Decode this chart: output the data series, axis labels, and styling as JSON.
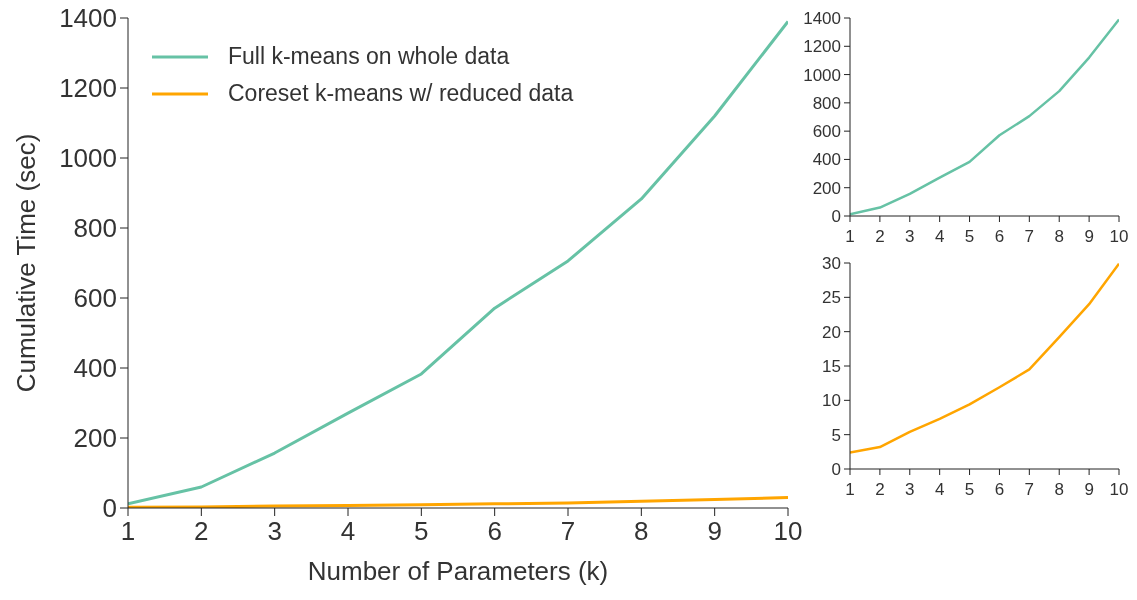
{
  "chart_data": [
    {
      "type": "line",
      "xlabel": "Number of Parameters (k)",
      "ylabel": "Cumulative Time (sec)",
      "x": [
        1,
        2,
        3,
        4,
        5,
        6,
        7,
        8,
        9,
        10
      ],
      "xlim": [
        1,
        10
      ],
      "xticks": [
        1,
        2,
        3,
        4,
        5,
        6,
        7,
        8,
        9,
        10
      ],
      "ylim": [
        0,
        1400
      ],
      "yticks": [
        0,
        200,
        400,
        600,
        800,
        1000,
        1200,
        1400
      ],
      "grid": false,
      "legend": "top left",
      "marker": "none",
      "line_style": "solid",
      "series": [
        {
          "name": "Full k-means on whole data",
          "color": "#66c2a5",
          "values": [
            12,
            60,
            157,
            271,
            383,
            571,
            706,
            883,
            1120,
            1390
          ]
        },
        {
          "name": "Coreset k-means w/ reduced data",
          "color": "#ffa500",
          "values": [
            2.4,
            3.2,
            5.4,
            7.3,
            9.4,
            11.9,
            14.5,
            19.2,
            24,
            29.9
          ]
        }
      ]
    },
    {
      "type": "line",
      "x": [
        1,
        2,
        3,
        4,
        5,
        6,
        7,
        8,
        9,
        10
      ],
      "xlim": [
        1,
        10
      ],
      "xticks": [
        1,
        2,
        3,
        4,
        5,
        6,
        7,
        8,
        9,
        10
      ],
      "ylim": [
        0,
        1400
      ],
      "yticks": [
        0,
        200,
        400,
        600,
        800,
        1000,
        1200,
        1400
      ],
      "grid": false,
      "marker": "none",
      "line_style": "solid",
      "series": [
        {
          "color": "#66c2a5",
          "values": [
            12,
            60,
            157,
            271,
            383,
            571,
            706,
            883,
            1120,
            1390
          ]
        }
      ]
    },
    {
      "type": "line",
      "x": [
        1,
        2,
        3,
        4,
        5,
        6,
        7,
        8,
        9,
        10
      ],
      "xlim": [
        1,
        10
      ],
      "xticks": [
        1,
        2,
        3,
        4,
        5,
        6,
        7,
        8,
        9,
        10
      ],
      "ylim": [
        0,
        30
      ],
      "yticks": [
        0,
        5,
        10,
        15,
        20,
        25,
        30
      ],
      "grid": false,
      "marker": "none",
      "line_style": "solid",
      "series": [
        {
          "color": "#ffa500",
          "values": [
            2.4,
            3.2,
            5.4,
            7.3,
            9.4,
            11.9,
            14.5,
            19.2,
            24,
            29.9
          ]
        }
      ]
    }
  ]
}
